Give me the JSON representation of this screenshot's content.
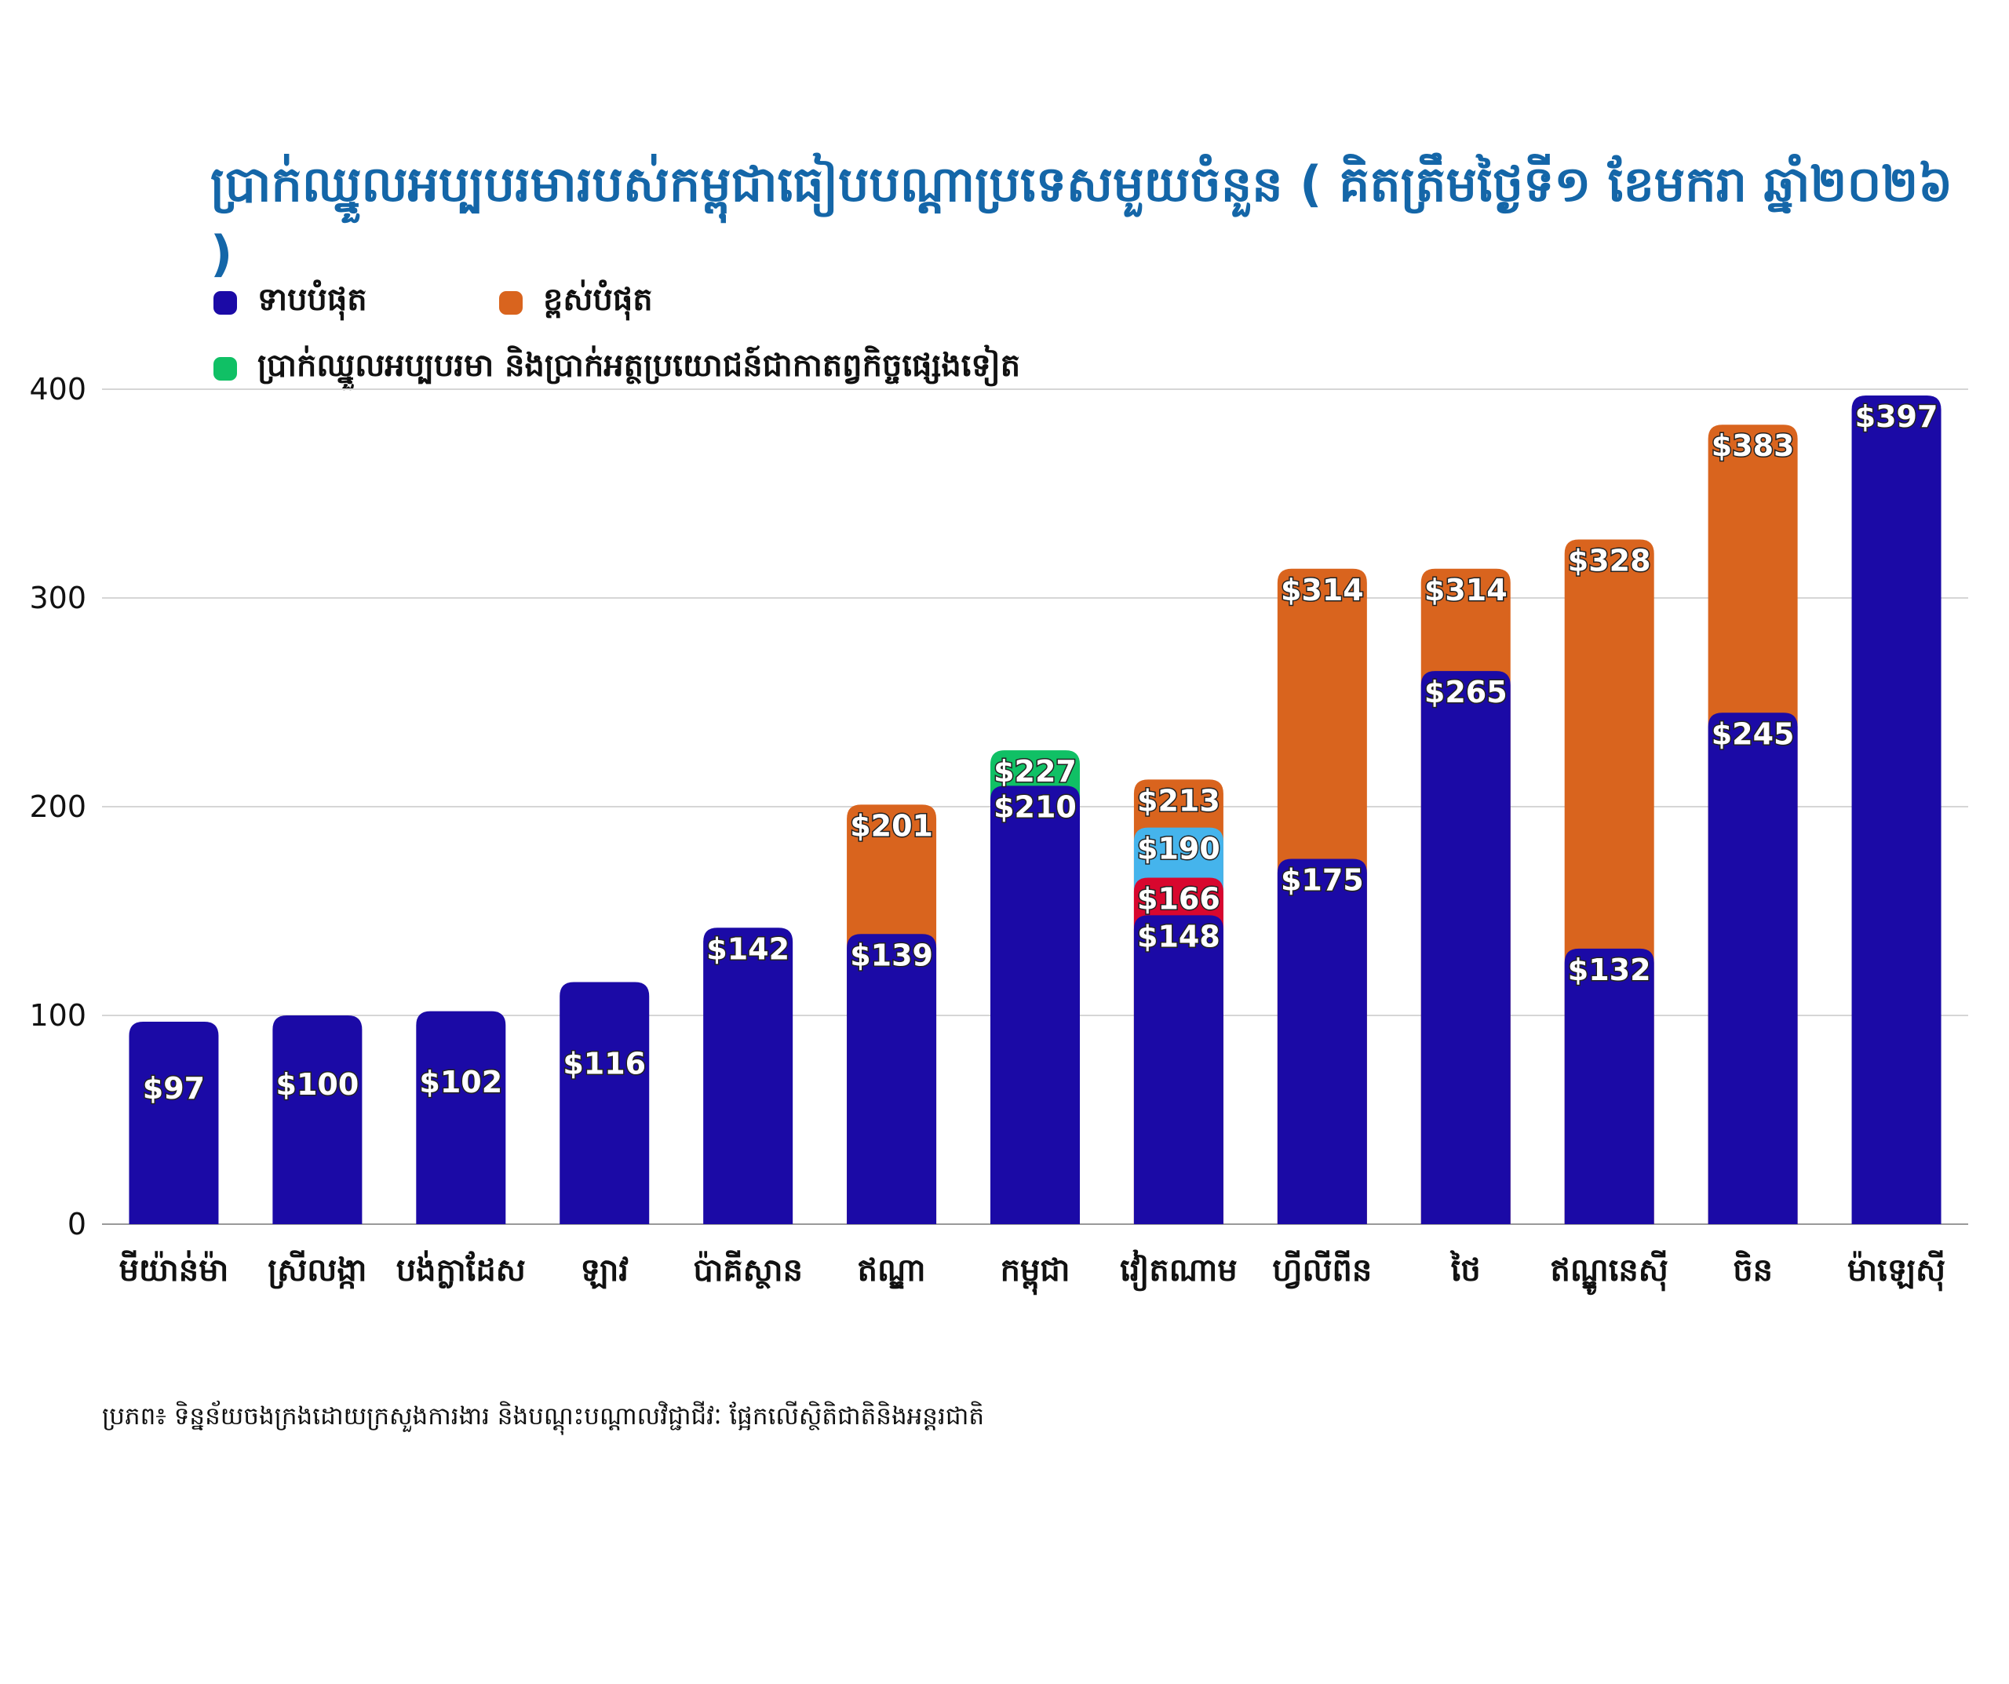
{
  "chart_data": {
    "type": "bar",
    "title": "ប្រាក់ឈ្នួលអប្បបរមារបស់កម្ពុជាធៀបបណ្ដាប្រទេសមួយចំនួន ( គិតត្រឹមថ្ងៃទី១ ខែមករា ឆ្នាំ២០២៦ )",
    "legend": [
      {
        "name": "ទាបបំផុត",
        "color": "#1b0aa6"
      },
      {
        "name": "ខ្ពស់បំផុត",
        "color": "#d9641e"
      },
      {
        "name": "ប្រាក់ឈ្នួលអប្បបរមា និងប្រាក់អត្ថប្រយោជន៍ជាកាតព្វកិច្ចផ្សេងទៀត",
        "color": "#10c065"
      }
    ],
    "ylim": [
      0,
      400
    ],
    "yticks": [
      0,
      100,
      200,
      300,
      400
    ],
    "grid": true,
    "highlight_category": "កម្ពុជា",
    "highlight_color": "#2a14d8",
    "categories": [
      "មីយ៉ាន់ម៉ា",
      "ស្រីលង្កា",
      "បង់ក្លាដែស",
      "ឡាវ",
      "ប៉ាគីស្ថាន",
      "ឥណ្ឌា",
      "កម្ពុជា",
      "វៀតណាម",
      "ហ្វីលីពីន",
      "ថៃ",
      "ឥណ្ឌូនេស៊ី",
      "ចិន",
      "ម៉ាឡេស៊ី"
    ],
    "series": [
      {
        "name": "ទាបបំផុត",
        "color": "#1b0aa6",
        "values": [
          97,
          100,
          102,
          116,
          142,
          139,
          210,
          148,
          175,
          265,
          132,
          245,
          397
        ],
        "labels": [
          "$97",
          "$100",
          "$102",
          "$116",
          "$142",
          "$139",
          "$210",
          "$148",
          "$175",
          "$265",
          "$132",
          "$245",
          "$397"
        ]
      },
      {
        "name": "ខ្ពស់បំផុត",
        "color": "#d9641e",
        "values": [
          null,
          null,
          null,
          null,
          null,
          201,
          null,
          213,
          314,
          314,
          328,
          383,
          null
        ],
        "labels": [
          "",
          "",
          "",
          "",
          "",
          "$201",
          "",
          "$213",
          "$314",
          "$314",
          "$328",
          "$383",
          ""
        ]
      },
      {
        "name": "ប្រាក់ឈ្នួលអប្បបរមា និងប្រាក់អត្ថប្រយោជន៍ជាកាតព្វកិច្ចផ្សេងទៀត",
        "color": "#10c065",
        "values": [
          null,
          null,
          null,
          null,
          null,
          null,
          227,
          null,
          null,
          null,
          null,
          null,
          null
        ],
        "labels": [
          "",
          "",
          "",
          "",
          "",
          "",
          "$227",
          "",
          "",
          "",
          "",
          "",
          ""
        ]
      }
    ],
    "extra_segments": [
      {
        "category": "វៀតណាម",
        "value": 166,
        "label": "$166",
        "color": "#d8072e"
      },
      {
        "category": "វៀតណាម",
        "value": 190,
        "label": "$190",
        "color": "#45b4ec"
      }
    ]
  },
  "source": "ប្រភព៖ ទិន្នន័យចងក្រងដោយក្រសួងការងារ និងបណ្ដុះបណ្ដាលវិជ្ជាជីវៈ ផ្អែកលើស្ថិតិជាតិនិងអន្តរជាតិ"
}
